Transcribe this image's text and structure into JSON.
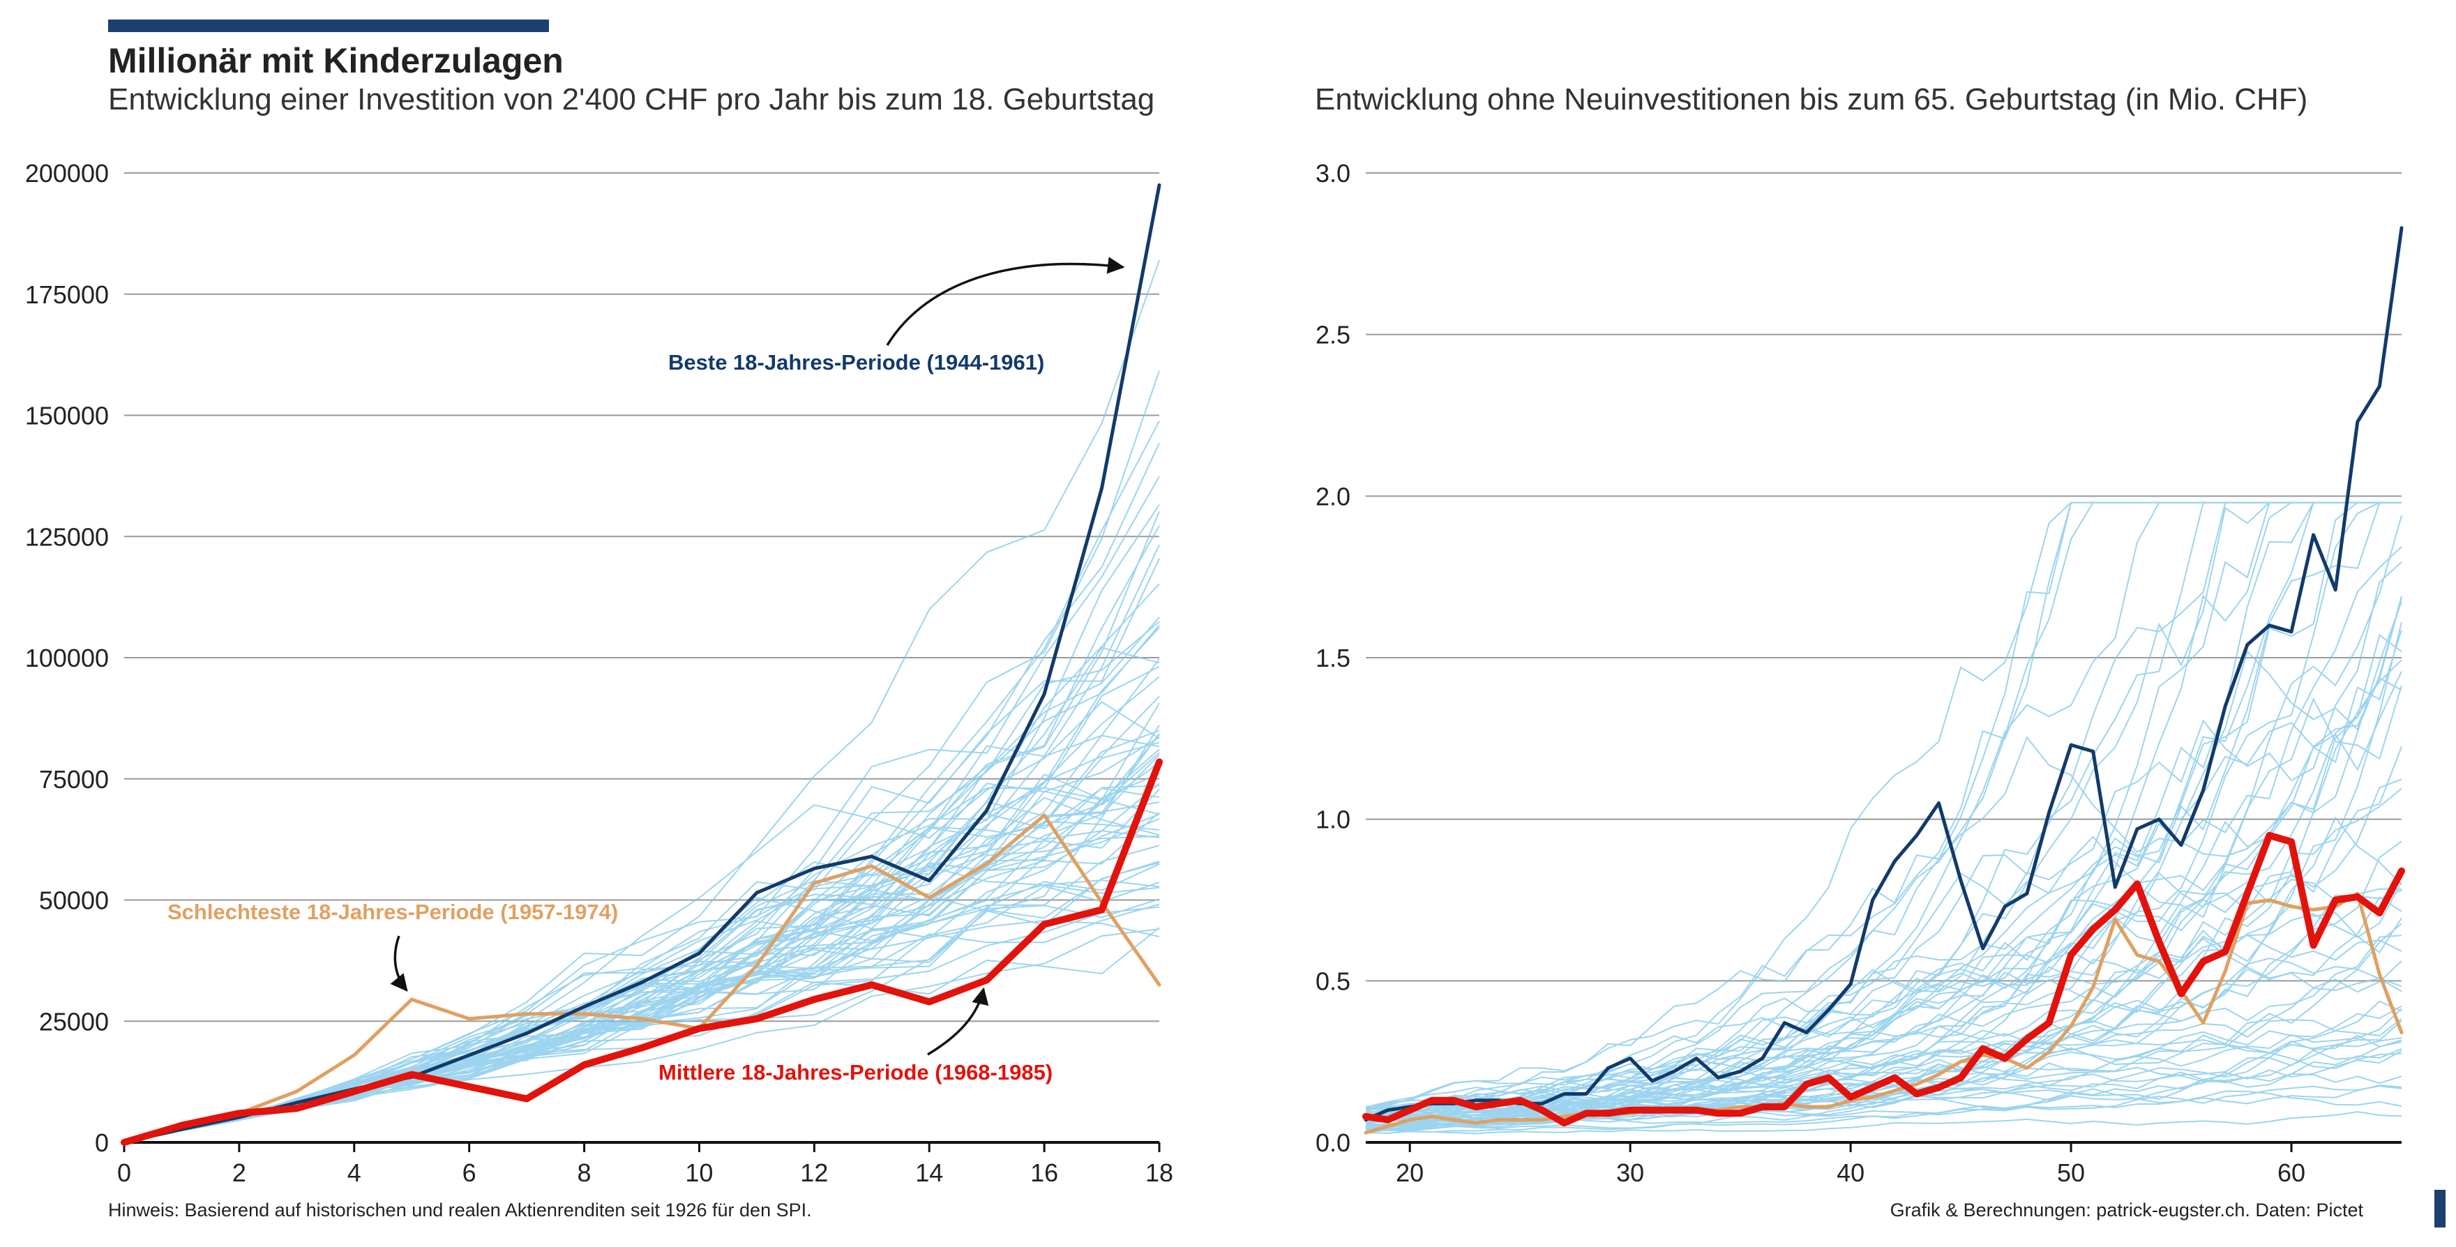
{
  "header": {
    "title": "Millionär mit Kinderzulagen",
    "subtitle_left": "Entwicklung einer Investition von 2'400 CHF pro Jahr bis zum 18. Geburtstag",
    "subtitle_right": "Entwicklung ohne Neuinvestitionen bis zum 65. Geburtstag (in Mio. CHF)"
  },
  "footer": {
    "note": "Hinweis: Basierend auf historischen und realen Aktienrenditen seit 1926 für den SPI.",
    "credit": "Grafik & Berechnungen: patrick-eugster.ch. Daten: Pictet"
  },
  "colors": {
    "best": "#123a6b",
    "worst": "#e0a060",
    "median": "#e3120b",
    "background_series": "#7cc6ea",
    "accent": "#1b3f6e",
    "grid": "#9a9a9a"
  },
  "chart_data": [
    {
      "type": "line",
      "title": "Entwicklung einer Investition von 2'400 CHF pro Jahr bis zum 18. Geburtstag",
      "xlabel": "",
      "ylabel": "",
      "xlim": [
        0,
        18
      ],
      "ylim": [
        0,
        200000
      ],
      "x_ticks": [
        0,
        2,
        4,
        6,
        8,
        10,
        12,
        14,
        16,
        18
      ],
      "y_ticks": [
        0,
        25000,
        50000,
        75000,
        100000,
        125000,
        150000,
        175000,
        200000
      ],
      "grid": "horizontal",
      "x": [
        0,
        1,
        2,
        3,
        4,
        5,
        6,
        7,
        8,
        9,
        10,
        11,
        12,
        13,
        14,
        15,
        16,
        17,
        18
      ],
      "series": [
        {
          "name": "Beste 18-Jahres-Periode (1944-1961)",
          "role": "best",
          "values": [
            0,
            2700,
            5200,
            8200,
            11000,
            13500,
            18000,
            22500,
            28000,
            33000,
            39000,
            51500,
            56500,
            59000,
            54000,
            68500,
            92500,
            135000,
            197500
          ]
        },
        {
          "name": "Schlechteste 18-Jahres-Periode (1957-1974)",
          "role": "worst",
          "values": [
            0,
            2700,
            6000,
            10500,
            18000,
            29500,
            25500,
            26500,
            26500,
            25500,
            23500,
            36500,
            53500,
            57000,
            50500,
            57500,
            67500,
            49500,
            32500
          ]
        },
        {
          "name": "Mittlere 18-Jahres-Periode (1968-1985)",
          "role": "median",
          "values": [
            0,
            3500,
            6000,
            7000,
            10500,
            14000,
            11500,
            9000,
            16000,
            19500,
            23500,
            25500,
            29500,
            32500,
            29000,
            33500,
            45000,
            48000,
            78500
          ]
        }
      ],
      "annotations": [
        {
          "text": "Beste 18-Jahres-Periode (1944-1961)",
          "role": "best"
        },
        {
          "text": "Schlechteste 18-Jahres-Periode (1957-1974)",
          "role": "worst"
        },
        {
          "text": "Mittlere 18-Jahres-Periode (1968-1985)",
          "role": "median"
        }
      ],
      "background_series_count": 60
    },
    {
      "type": "line",
      "title": "Entwicklung ohne Neuinvestitionen bis zum 65. Geburtstag (in Mio. CHF)",
      "xlabel": "",
      "ylabel": "",
      "xlim": [
        18,
        65
      ],
      "ylim": [
        0,
        3.0
      ],
      "x_ticks": [
        20,
        30,
        40,
        50,
        60
      ],
      "y_ticks": [
        0.0,
        0.5,
        1.0,
        1.5,
        2.0,
        2.5,
        3.0
      ],
      "grid": "horizontal",
      "x": [
        18,
        19,
        20,
        21,
        22,
        23,
        24,
        25,
        26,
        27,
        28,
        29,
        30,
        31,
        32,
        33,
        34,
        35,
        36,
        37,
        38,
        39,
        40,
        41,
        42,
        43,
        44,
        45,
        46,
        47,
        48,
        49,
        50,
        51,
        52,
        53,
        54,
        55,
        56,
        57,
        58,
        59,
        60,
        61,
        62,
        63,
        64,
        65
      ],
      "series": [
        {
          "name": "Beste 18-Jahres-Periode (1944-1961)",
          "role": "best",
          "values": [
            0.07,
            0.1,
            0.11,
            0.12,
            0.12,
            0.13,
            0.13,
            0.12,
            0.12,
            0.15,
            0.15,
            0.23,
            0.26,
            0.19,
            0.22,
            0.26,
            0.2,
            0.22,
            0.26,
            0.37,
            0.34,
            0.41,
            0.49,
            0.75,
            0.87,
            0.95,
            1.05,
            0.81,
            0.6,
            0.73,
            0.77,
            1.02,
            1.23,
            1.21,
            0.79,
            0.97,
            1.0,
            0.92,
            1.09,
            1.35,
            1.54,
            1.6,
            1.58,
            1.88,
            1.71,
            2.23,
            2.34,
            2.83
          ]
        },
        {
          "name": "Schlechteste 18-Jahres-Periode (1957-1974)",
          "role": "worst",
          "values": [
            0.03,
            0.05,
            0.07,
            0.08,
            0.07,
            0.06,
            0.07,
            0.07,
            0.07,
            0.08,
            0.09,
            0.09,
            0.09,
            0.1,
            0.1,
            0.1,
            0.1,
            0.11,
            0.11,
            0.12,
            0.11,
            0.11,
            0.13,
            0.14,
            0.16,
            0.18,
            0.21,
            0.25,
            0.27,
            0.26,
            0.23,
            0.28,
            0.36,
            0.48,
            0.69,
            0.58,
            0.56,
            0.47,
            0.37,
            0.53,
            0.74,
            0.75,
            0.73,
            0.72,
            0.73,
            0.77,
            0.52,
            0.34
          ]
        },
        {
          "name": "Mittlere 18-Jahres-Periode (1968-1985)",
          "role": "median",
          "values": [
            0.08,
            0.07,
            0.1,
            0.13,
            0.13,
            0.11,
            0.12,
            0.13,
            0.1,
            0.06,
            0.09,
            0.09,
            0.1,
            0.1,
            0.1,
            0.1,
            0.09,
            0.09,
            0.11,
            0.11,
            0.18,
            0.2,
            0.14,
            0.17,
            0.2,
            0.15,
            0.17,
            0.2,
            0.29,
            0.26,
            0.32,
            0.37,
            0.58,
            0.66,
            0.72,
            0.8,
            0.62,
            0.46,
            0.56,
            0.59,
            0.77,
            0.95,
            0.93,
            0.61,
            0.75,
            0.76,
            0.71,
            0.84
          ]
        }
      ],
      "background_series_count": 60
    }
  ]
}
